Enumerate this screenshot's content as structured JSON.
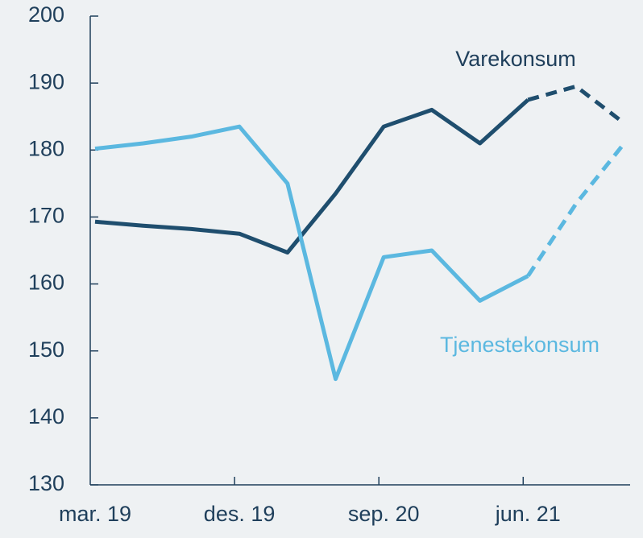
{
  "chart_data": {
    "type": "line",
    "categories": [
      "mar. 19",
      null,
      null,
      "des. 19",
      null,
      null,
      "sep. 20",
      null,
      null,
      "jun. 21",
      null,
      null
    ],
    "series": [
      {
        "name": "Varekonsum",
        "color": "#1f4e6e",
        "values": [
          169.3,
          168.7,
          168.2,
          167.5,
          164.7,
          173.5,
          183.5,
          186,
          181,
          187.5,
          189.5,
          184
        ]
      },
      {
        "name": "Tjenestekonsum",
        "color": "#5bb8e0",
        "values": [
          180.2,
          181,
          182,
          183.5,
          175,
          145.8,
          164,
          165,
          157.5,
          161.2,
          172,
          181
        ]
      }
    ],
    "dashed_from_index": 9,
    "ylim": [
      130,
      200
    ],
    "yticks": [
      130,
      140,
      150,
      160,
      170,
      180,
      190,
      200
    ]
  }
}
